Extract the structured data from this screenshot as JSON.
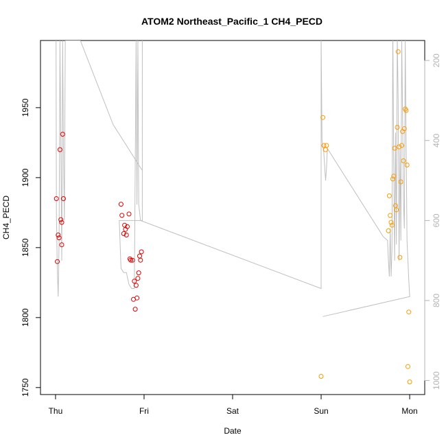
{
  "chart_data": {
    "type": "scatter",
    "title": "ATOM2 Northeast_Pacific_1 CH4_PECD",
    "xlabel": "Date",
    "ylabel": "CH4_PECD",
    "x_unit": "days since Thursday 00:00",
    "x_ticks": [
      {
        "value": 0,
        "label": "Thu"
      },
      {
        "value": 1,
        "label": "Fri"
      },
      {
        "value": 2,
        "label": "Sat"
      },
      {
        "value": 3,
        "label": "Sun"
      },
      {
        "value": 4,
        "label": "Mon"
      }
    ],
    "xlim": [
      -0.17,
      4.17
    ],
    "ylim": [
      1745,
      1998
    ],
    "y_ticks": [
      1750,
      1800,
      1850,
      1900,
      1950
    ],
    "right_axis": {
      "label": "",
      "reversed": true,
      "range": [
        1035,
        150
      ],
      "ticks": [
        200,
        400,
        600,
        800,
        1000
      ],
      "color": "#b3b3b3"
    },
    "grid": false,
    "series": [
      {
        "color": "#dd0000",
        "marker": "open-circle",
        "points": [
          [
            0.01,
            1885
          ],
          [
            0.02,
            1840
          ],
          [
            0.03,
            1859
          ],
          [
            0.04,
            1857
          ],
          [
            0.05,
            1920
          ],
          [
            0.06,
            1870
          ],
          [
            0.07,
            1868
          ],
          [
            0.07,
            1852
          ],
          [
            0.08,
            1931
          ],
          [
            0.09,
            1885
          ],
          [
            0.74,
            1881
          ],
          [
            0.75,
            1873
          ],
          [
            0.77,
            1860
          ],
          [
            0.78,
            1866
          ],
          [
            0.79,
            1863
          ],
          [
            0.8,
            1859
          ],
          [
            0.81,
            1865
          ],
          [
            0.83,
            1874
          ],
          [
            0.84,
            1842
          ],
          [
            0.85,
            1841
          ],
          [
            0.87,
            1841
          ],
          [
            0.88,
            1813
          ],
          [
            0.89,
            1826
          ],
          [
            0.9,
            1806
          ],
          [
            0.91,
            1823
          ],
          [
            0.92,
            1814
          ],
          [
            0.93,
            1828
          ],
          [
            0.94,
            1832
          ],
          [
            0.95,
            1844
          ],
          [
            0.96,
            1841
          ],
          [
            0.97,
            1847
          ]
        ]
      },
      {
        "color": "#ff9900",
        "marker": "open-circle",
        "points": [
          [
            3.0,
            1758
          ],
          [
            3.02,
            1943
          ],
          [
            3.03,
            1923
          ],
          [
            3.05,
            1920
          ],
          [
            3.06,
            1923
          ],
          [
            3.76,
            1862
          ],
          [
            3.77,
            1887
          ],
          [
            3.78,
            1873
          ],
          [
            3.79,
            1868
          ],
          [
            3.8,
            1866
          ],
          [
            3.81,
            1899
          ],
          [
            3.82,
            1901
          ],
          [
            3.83,
            1921
          ],
          [
            3.84,
            1880
          ],
          [
            3.85,
            1877
          ],
          [
            3.86,
            1936
          ],
          [
            3.87,
            1990
          ],
          [
            3.88,
            1922
          ],
          [
            3.89,
            1843
          ],
          [
            3.9,
            1897
          ],
          [
            3.91,
            1923
          ],
          [
            3.92,
            1933
          ],
          [
            3.93,
            1912
          ],
          [
            3.94,
            1935
          ],
          [
            3.95,
            1949
          ],
          [
            3.96,
            1948
          ],
          [
            3.97,
            1909
          ],
          [
            3.98,
            1765
          ],
          [
            3.99,
            1804
          ],
          [
            4.0,
            1754
          ]
        ]
      }
    ],
    "pressure_trace": {
      "color": "#bfbfbf",
      "axis": "right",
      "points": [
        [
          0.005,
          70
        ],
        [
          0.01,
          580
        ],
        [
          0.02,
          720
        ],
        [
          0.03,
          790
        ],
        [
          0.04,
          650
        ],
        [
          0.05,
          150
        ],
        [
          0.06,
          420
        ],
        [
          0.07,
          700
        ],
        [
          0.08,
          150
        ],
        [
          0.09,
          420
        ],
        [
          0.1,
          600
        ],
        [
          0.11,
          150
        ],
        [
          0.28,
          150
        ],
        [
          0.65,
          360
        ],
        [
          0.98,
          475
        ],
        [
          0.98,
          150
        ],
        [
          0.98,
          600
        ],
        [
          0.72,
          600
        ],
        [
          0.74,
          720
        ],
        [
          0.77,
          730
        ],
        [
          0.8,
          730
        ],
        [
          0.83,
          760
        ],
        [
          0.86,
          770
        ],
        [
          0.89,
          770
        ],
        [
          0.91,
          150
        ],
        [
          0.92,
          560
        ],
        [
          0.93,
          150
        ],
        [
          0.94,
          560
        ],
        [
          0.96,
          600
        ],
        [
          3.0,
          770
        ],
        [
          3.0,
          140
        ],
        [
          3.01,
          400
        ],
        [
          3.03,
          430
        ],
        [
          3.05,
          500
        ],
        [
          3.06,
          470
        ],
        [
          3.07,
          420
        ],
        [
          3.7,
          640
        ],
        [
          3.75,
          650
        ],
        [
          3.76,
          700
        ],
        [
          3.77,
          740
        ],
        [
          3.78,
          620
        ],
        [
          3.79,
          740
        ],
        [
          3.8,
          670
        ],
        [
          3.81,
          120
        ],
        [
          3.82,
          450
        ],
        [
          3.83,
          700
        ],
        [
          3.84,
          380
        ],
        [
          3.85,
          660
        ],
        [
          3.86,
          140
        ],
        [
          3.87,
          300
        ],
        [
          3.88,
          700
        ],
        [
          3.89,
          420
        ],
        [
          3.9,
          650
        ],
        [
          3.91,
          150
        ],
        [
          3.92,
          330
        ],
        [
          3.93,
          550
        ],
        [
          3.94,
          620
        ],
        [
          3.95,
          150
        ],
        [
          3.96,
          410
        ],
        [
          3.97,
          650
        ],
        [
          3.99,
          750
        ],
        [
          4.0,
          790
        ],
        [
          3.02,
          840
        ]
      ]
    }
  }
}
